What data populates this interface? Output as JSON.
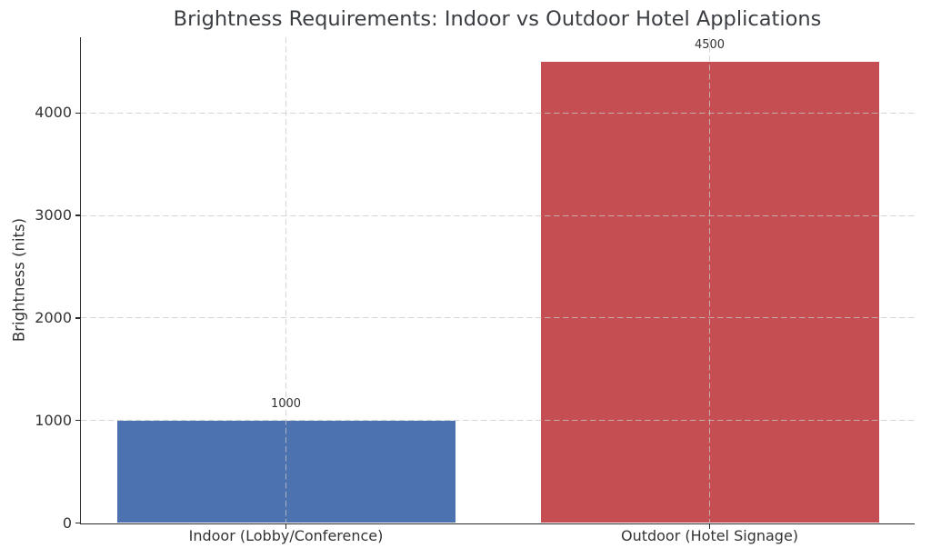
{
  "chart_data": {
    "type": "bar",
    "title": "Brightness Requirements: Indoor vs Outdoor Hotel Applications",
    "xlabel": "",
    "ylabel": "Brightness (nits)",
    "categories": [
      "Indoor (Lobby/Conference)",
      "Outdoor (Hotel Signage)"
    ],
    "values": [
      1000,
      4500
    ],
    "value_labels": [
      "1000",
      "4500"
    ],
    "bar_colors": [
      "#4C72B0",
      "#C44E52"
    ],
    "yticks": [
      0,
      1000,
      2000,
      3000,
      4000
    ],
    "ylim": [
      0,
      4740
    ],
    "grid": "dashed",
    "legend": "none"
  }
}
